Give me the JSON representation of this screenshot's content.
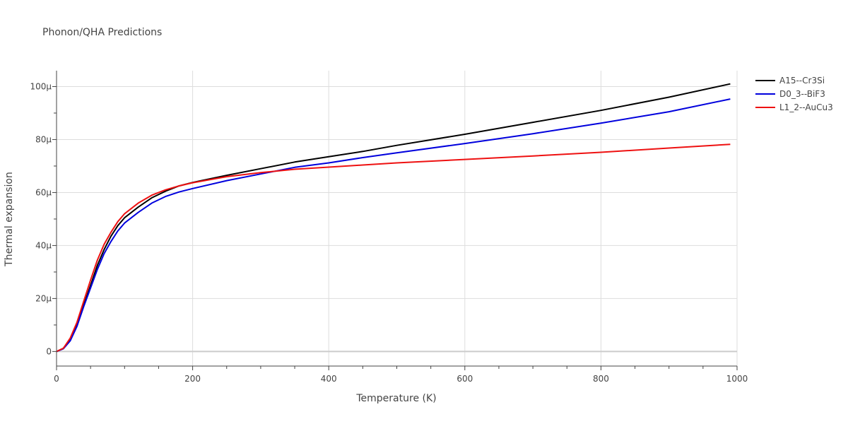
{
  "chart_data": {
    "type": "line",
    "title": "Phonon/QHA Predictions",
    "xlabel": "Temperature (K)",
    "ylabel": "Thermal expansion",
    "xlim": [
      0,
      1000
    ],
    "ylim": [
      -5.5e-06,
      0.000106
    ],
    "xticks": [
      0,
      200,
      400,
      600,
      800,
      1000
    ],
    "xtick_labels": [
      "0",
      "200",
      "400",
      "600",
      "800",
      "1000"
    ],
    "yticks": [
      0,
      2e-05,
      4e-05,
      6e-05,
      8e-05,
      0.0001
    ],
    "ytick_labels": [
      "0",
      "20µ",
      "40µ",
      "60µ",
      "80µ",
      "100µ"
    ],
    "grid": true,
    "legend_position": "top-right",
    "series": [
      {
        "name": "A15--Cr3Si",
        "color": "#000000",
        "x": [
          0,
          10,
          20,
          30,
          40,
          50,
          60,
          70,
          80,
          90,
          100,
          120,
          140,
          160,
          180,
          200,
          250,
          300,
          350,
          400,
          450,
          500,
          600,
          700,
          800,
          900,
          990
        ],
        "y": [
          0,
          1.2e-06,
          4.5e-06,
          1e-05,
          1.75e-05,
          2.5e-05,
          3.25e-05,
          3.85e-05,
          4.35e-05,
          4.75e-05,
          5.05e-05,
          5.45e-05,
          5.8e-05,
          6.05e-05,
          6.25e-05,
          6.38e-05,
          6.65e-05,
          6.9e-05,
          7.15e-05,
          7.35e-05,
          7.55e-05,
          7.78e-05,
          8.2e-05,
          8.65e-05,
          9.1e-05,
          9.6e-05,
          0.000101
        ]
      },
      {
        "name": "D0_3--BiF3",
        "color": "#0000dd",
        "x": [
          0,
          10,
          20,
          30,
          40,
          50,
          60,
          70,
          80,
          90,
          100,
          120,
          140,
          160,
          180,
          200,
          250,
          300,
          350,
          400,
          450,
          500,
          600,
          700,
          800,
          900,
          990
        ],
        "y": [
          0,
          1e-06,
          4e-06,
          9.5e-06,
          1.7e-05,
          2.4e-05,
          3.1e-05,
          3.7e-05,
          4.15e-05,
          4.55e-05,
          4.85e-05,
          5.25e-05,
          5.6e-05,
          5.85e-05,
          6.02e-05,
          6.15e-05,
          6.45e-05,
          6.7e-05,
          6.95e-05,
          7.12e-05,
          7.32e-05,
          7.5e-05,
          7.85e-05,
          8.22e-05,
          8.62e-05,
          9.05e-05,
          9.53e-05
        ]
      },
      {
        "name": "L1_2--AuCu3",
        "color": "#ee1111",
        "x": [
          0,
          10,
          20,
          30,
          40,
          50,
          60,
          70,
          80,
          90,
          100,
          120,
          140,
          160,
          180,
          200,
          250,
          300,
          350,
          400,
          450,
          500,
          600,
          700,
          800,
          900,
          990
        ],
        "y": [
          0,
          1.2e-06,
          5e-06,
          1.1e-05,
          1.9e-05,
          2.7e-05,
          3.45e-05,
          4.05e-05,
          4.5e-05,
          4.9e-05,
          5.2e-05,
          5.6e-05,
          5.9e-05,
          6.1e-05,
          6.25e-05,
          6.37e-05,
          6.6e-05,
          6.75e-05,
          6.88e-05,
          6.96e-05,
          7.04e-05,
          7.12e-05,
          7.25e-05,
          7.38e-05,
          7.52e-05,
          7.68e-05,
          7.82e-05
        ]
      }
    ]
  }
}
